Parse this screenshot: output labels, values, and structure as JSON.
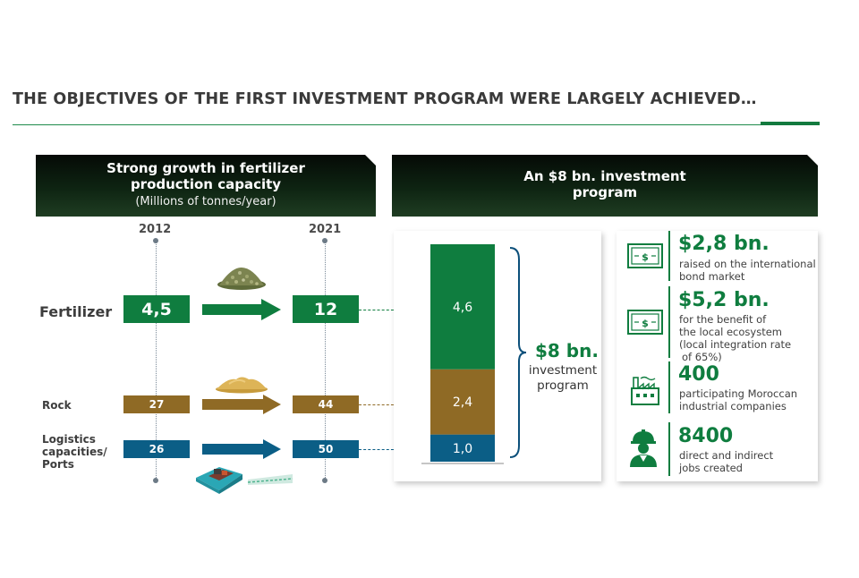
{
  "title": "THE OBJECTIVES OF THE FIRST INVESTMENT PROGRAM WERE LARGELY ACHIEVED…",
  "left_panel": {
    "heading": "Strong growth in fertilizer production capacity",
    "heading_line1": "Strong growth in fertilizer",
    "heading_line2": "production capacity",
    "subheading": "(Millions of tonnes/year)",
    "year_start": "2012",
    "year_end": "2021",
    "rows": [
      {
        "label": "Fertilizer",
        "value_2012": "4,5",
        "value_2021": "12",
        "color": "#0f7d3f"
      },
      {
        "label": "Rock",
        "value_2012": "27",
        "value_2021": "44",
        "color": "#8f6a25"
      },
      {
        "label": "Logistics capacities/ Ports",
        "label_line1": "Logistics",
        "label_line2": "capacities/",
        "label_line3": "Ports",
        "value_2012": "26",
        "value_2021": "50",
        "color": "#0b5e86"
      }
    ]
  },
  "right_panel": {
    "heading_line1": "An $8 bn. investment",
    "heading_line2": "program"
  },
  "chart_data": {
    "type": "bar",
    "stacked": true,
    "categories": [
      ""
    ],
    "series": [
      {
        "values": [
          1.0
        ],
        "label": "1,0",
        "color": "#0b5e86"
      },
      {
        "values": [
          2.4
        ],
        "label": "2,4",
        "color": "#8f6a25"
      },
      {
        "values": [
          4.6
        ],
        "label": "4,6",
        "color": "#0f7d3f"
      }
    ],
    "total_value": "$8 bn.",
    "total_label_line1": "investment",
    "total_label_line2": "program"
  },
  "stats": [
    {
      "icon": "money-bill-icon",
      "value": "$2,8 bn.",
      "desc_lines": [
        "raised on the international",
        "bond market"
      ]
    },
    {
      "icon": "money-bill-icon",
      "value": "$5,2 bn.",
      "desc_lines": [
        "for the benefit of",
        "the local ecosystem",
        "(local integration rate",
        "of 65%)"
      ]
    },
    {
      "icon": "factory-icon",
      "value": "400",
      "desc_lines": [
        "participating Moroccan",
        "industrial companies"
      ]
    },
    {
      "icon": "worker-icon",
      "value": "8400",
      "desc_lines": [
        "direct and indirect",
        "jobs created"
      ]
    }
  ],
  "colors": {
    "green": "#0f7d3f",
    "brown": "#8f6a25",
    "blue": "#0b5e86",
    "header_dark": "#0e2412"
  }
}
